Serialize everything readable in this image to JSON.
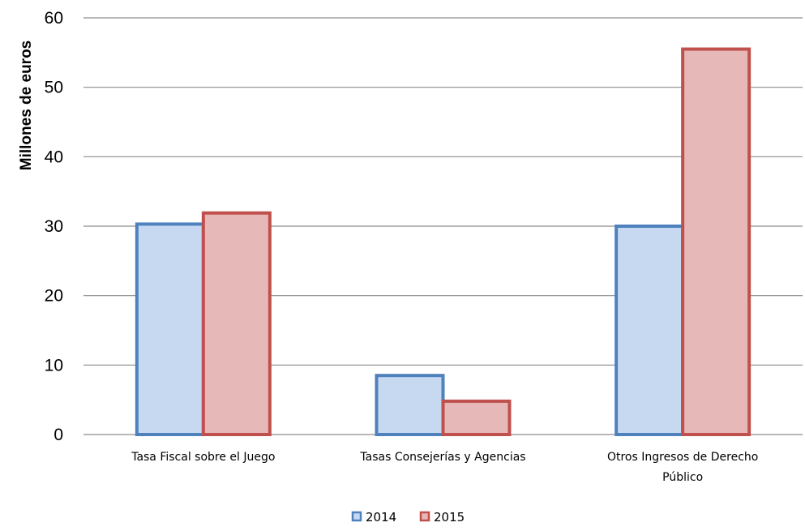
{
  "chart_data": {
    "type": "bar",
    "categories": [
      "Tasa Fiscal sobre el Juego",
      "Tasas Consejerías y Agencias",
      "Otros Ingresos de Derecho Público"
    ],
    "category_lines": [
      [
        "Tasa Fiscal sobre el Juego"
      ],
      [
        "Tasas Consejerías y Agencias"
      ],
      [
        "Otros Ingresos de Derecho",
        "Público"
      ]
    ],
    "series": [
      {
        "name": "2014",
        "values": [
          30.3,
          8.5,
          30.0
        ],
        "fill": "#c6d9f1",
        "stroke": "#4f81bd"
      },
      {
        "name": "2015",
        "values": [
          31.9,
          4.8,
          55.5
        ],
        "fill": "#e6b9b8",
        "stroke": "#c0504d"
      }
    ],
    "title": "",
    "xlabel": "",
    "ylabel": "Millones de euros",
    "ylim": [
      0,
      60
    ],
    "yticks": [
      0,
      10,
      20,
      30,
      40,
      50,
      60
    ],
    "grid": true,
    "legend": "bottom"
  }
}
